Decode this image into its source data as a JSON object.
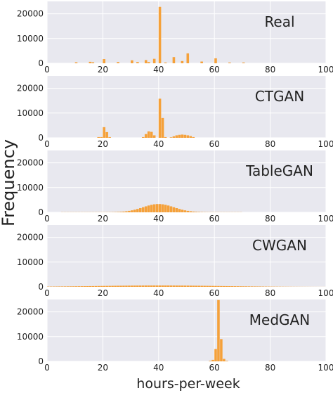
{
  "figure": {
    "ylabel": "Frequency",
    "xlabel": "hours-per-week",
    "colors": {
      "panel_bg": "#e8e8ef",
      "bar": "#f5a13a",
      "grid": "#ffffff",
      "text": "#222222"
    }
  },
  "chart_data": [
    {
      "type": "bar",
      "title": "Real",
      "xlim": [
        0,
        100
      ],
      "ylim": [
        0,
        25000
      ],
      "xticks": [
        0,
        20,
        40,
        60,
        80,
        100
      ],
      "yticks": [
        0,
        10000,
        20000
      ],
      "bin_width": 1,
      "series": [
        {
          "bars": [
            [
              10,
              400
            ],
            [
              15,
              600
            ],
            [
              16,
              400
            ],
            [
              20,
              1700
            ],
            [
              25,
              500
            ],
            [
              30,
              1200
            ],
            [
              32,
              500
            ],
            [
              35,
              1300
            ],
            [
              36,
              500
            ],
            [
              38,
              1800
            ],
            [
              40,
              22800
            ],
            [
              42,
              300
            ],
            [
              45,
              2500
            ],
            [
              48,
              900
            ],
            [
              50,
              4000
            ],
            [
              55,
              700
            ],
            [
              60,
              2000
            ],
            [
              65,
              300
            ],
            [
              70,
              300
            ]
          ]
        }
      ]
    },
    {
      "type": "bar",
      "title": "CTGAN",
      "xlim": [
        0,
        100
      ],
      "ylim": [
        0,
        25000
      ],
      "xticks": [
        0,
        20,
        40,
        60,
        80,
        100
      ],
      "yticks": [
        0,
        10000,
        20000
      ],
      "bin_width": 1,
      "series": [
        {
          "bars": [
            [
              18,
              300
            ],
            [
              19,
              300
            ],
            [
              20,
              4300
            ],
            [
              21,
              2300
            ],
            [
              22,
              300
            ],
            [
              34,
              300
            ],
            [
              35,
              1500
            ],
            [
              36,
              2600
            ],
            [
              37,
              2400
            ],
            [
              38,
              1000
            ],
            [
              40,
              15800
            ],
            [
              41,
              8000
            ],
            [
              42,
              300
            ],
            [
              44,
              200
            ],
            [
              45,
              600
            ],
            [
              46,
              1000
            ],
            [
              47,
              1200
            ],
            [
              48,
              1300
            ],
            [
              49,
              1200
            ],
            [
              50,
              1000
            ],
            [
              51,
              700
            ],
            [
              52,
              300
            ]
          ]
        }
      ]
    },
    {
      "type": "bar",
      "title": "TableGAN",
      "xlim": [
        0,
        100
      ],
      "ylim": [
        0,
        25000
      ],
      "xticks": [
        0,
        20,
        40,
        60,
        80,
        100
      ],
      "yticks": [
        0,
        10000,
        20000
      ],
      "bin_width": 1,
      "series": [
        {
          "gaussian": {
            "center": 40,
            "sigma": 5.5,
            "peak": 3300,
            "from": 5,
            "to": 70,
            "floor": 60
          }
        }
      ]
    },
    {
      "type": "bar",
      "title": "CWGAN",
      "xlim": [
        0,
        100
      ],
      "ylim": [
        0,
        25000
      ],
      "xticks": [
        0,
        20,
        40,
        60,
        80,
        100
      ],
      "yticks": [
        0,
        10000,
        20000
      ],
      "bin_width": 1,
      "series": [
        {
          "gaussian": {
            "center": 40,
            "sigma": 22,
            "peak": 550,
            "from": 0,
            "to": 100,
            "floor": 0
          }
        }
      ]
    },
    {
      "type": "bar",
      "title": "MedGAN",
      "xlim": [
        0,
        100
      ],
      "ylim": [
        0,
        25000
      ],
      "xticks": [
        0,
        20,
        40,
        60,
        80,
        100
      ],
      "yticks": [
        0,
        10000,
        20000
      ],
      "bin_width": 1,
      "series": [
        {
          "bars": [
            [
              58,
              200
            ],
            [
              59,
              600
            ],
            [
              60,
              5000
            ],
            [
              61,
              24800
            ],
            [
              62,
              9000
            ],
            [
              63,
              1000
            ],
            [
              64,
              200
            ]
          ]
        }
      ]
    }
  ]
}
